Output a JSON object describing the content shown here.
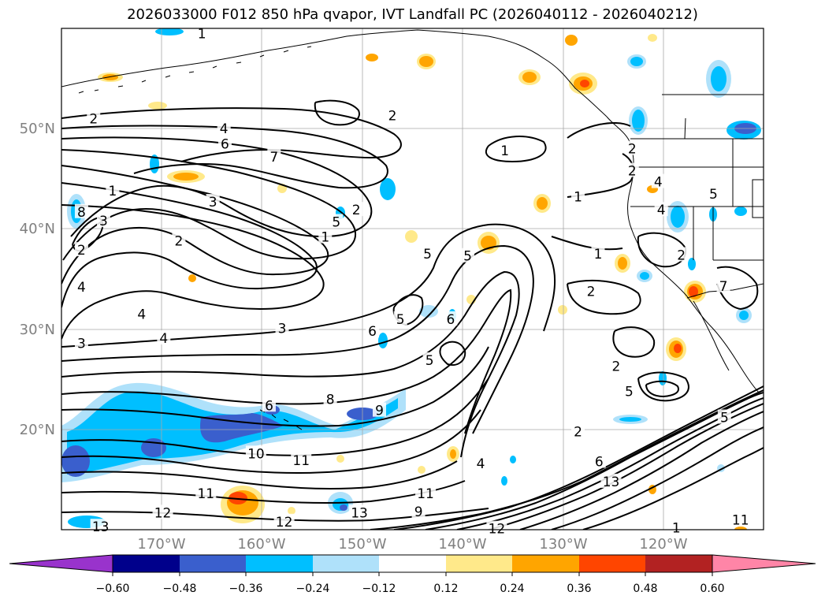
{
  "title": "2026033000 F012 850 hPa qvapor, IVT Landfall PC (2026040112 - 2026040212)",
  "map": {
    "projection": "PlateCarree",
    "lon_range": [
      -180,
      -110
    ],
    "lat_range": [
      10,
      60
    ],
    "lat_ticks": [
      "50°N",
      "40°N",
      "30°N",
      "20°N"
    ],
    "lon_ticks": [
      "170°W",
      "160°W",
      "150°W",
      "140°W",
      "130°W",
      "120°W"
    ],
    "grid": true,
    "tick_label_color": "#808080"
  },
  "contour_labels": [
    {
      "text": "1",
      "lon": -166,
      "lat": 59.5
    },
    {
      "text": "2",
      "lon": -176.8,
      "lat": 51
    },
    {
      "text": "4",
      "lon": -163.8,
      "lat": 50
    },
    {
      "text": "6",
      "lon": -163.7,
      "lat": 48.5
    },
    {
      "text": "2",
      "lon": -147,
      "lat": 51.3
    },
    {
      "text": "7",
      "lon": -158.8,
      "lat": 47.2
    },
    {
      "text": "1",
      "lon": -135.8,
      "lat": 47.8
    },
    {
      "text": "2",
      "lon": -123.1,
      "lat": 48
    },
    {
      "text": "2",
      "lon": -123.1,
      "lat": 45.8
    },
    {
      "text": "1",
      "lon": -128.5,
      "lat": 43.2
    },
    {
      "text": "4",
      "lon": -120.5,
      "lat": 44.7
    },
    {
      "text": "5",
      "lon": -115,
      "lat": 43.5
    },
    {
      "text": "1",
      "lon": -174.9,
      "lat": 43.8
    },
    {
      "text": "3",
      "lon": -164.9,
      "lat": 42.7
    },
    {
      "text": "8",
      "lon": -178,
      "lat": 41.7
    },
    {
      "text": "3",
      "lon": -175.8,
      "lat": 40.8
    },
    {
      "text": "5",
      "lon": -152.6,
      "lat": 40.7
    },
    {
      "text": "2",
      "lon": -150.6,
      "lat": 41.9
    },
    {
      "text": "1",
      "lon": -153.7,
      "lat": 39.2
    },
    {
      "text": "2",
      "lon": -168.3,
      "lat": 38.8
    },
    {
      "text": "2",
      "lon": -178,
      "lat": 37.9
    },
    {
      "text": "4",
      "lon": -120.2,
      "lat": 41.9
    },
    {
      "text": "5",
      "lon": -143.5,
      "lat": 37.5
    },
    {
      "text": "5",
      "lon": -139.5,
      "lat": 37.3
    },
    {
      "text": "1",
      "lon": -126.5,
      "lat": 37.5
    },
    {
      "text": "2",
      "lon": -118.2,
      "lat": 37.4
    },
    {
      "text": "4",
      "lon": -178,
      "lat": 34.2
    },
    {
      "text": "4",
      "lon": -172,
      "lat": 31.5
    },
    {
      "text": "2",
      "lon": -127.2,
      "lat": 33.8
    },
    {
      "text": "7",
      "lon": -114,
      "lat": 34.3
    },
    {
      "text": "6",
      "lon": -149,
      "lat": 29.8
    },
    {
      "text": "5",
      "lon": -146.2,
      "lat": 31
    },
    {
      "text": "6",
      "lon": -141.2,
      "lat": 31
    },
    {
      "text": "3",
      "lon": -158,
      "lat": 30.1
    },
    {
      "text": "4",
      "lon": -169.8,
      "lat": 29.1
    },
    {
      "text": "3",
      "lon": -178,
      "lat": 28.6
    },
    {
      "text": "5",
      "lon": -143.3,
      "lat": 26.9
    },
    {
      "text": "2",
      "lon": -124.7,
      "lat": 26.3
    },
    {
      "text": "5",
      "lon": -123.4,
      "lat": 23.8
    },
    {
      "text": "6",
      "lon": -159.3,
      "lat": 22.4
    },
    {
      "text": "8",
      "lon": -153.2,
      "lat": 23
    },
    {
      "text": "9",
      "lon": -148.3,
      "lat": 21.9
    },
    {
      "text": "5",
      "lon": -113.9,
      "lat": 21.2
    },
    {
      "text": "2",
      "lon": -128.5,
      "lat": 19.8
    },
    {
      "text": "10",
      "lon": -160.6,
      "lat": 17.6
    },
    {
      "text": "11",
      "lon": -156.1,
      "lat": 16.9
    },
    {
      "text": "4",
      "lon": -138.2,
      "lat": 16.6
    },
    {
      "text": "6",
      "lon": -126.4,
      "lat": 16.8
    },
    {
      "text": "13",
      "lon": -125.2,
      "lat": 14.8
    },
    {
      "text": "11",
      "lon": -165.6,
      "lat": 13.6
    },
    {
      "text": "11",
      "lon": -143.7,
      "lat": 13.6
    },
    {
      "text": "12",
      "lon": -169.9,
      "lat": 11.7
    },
    {
      "text": "13",
      "lon": -150.3,
      "lat": 11.7
    },
    {
      "text": "9",
      "lon": -144.4,
      "lat": 11.8
    },
    {
      "text": "12",
      "lon": -157.8,
      "lat": 10.8
    },
    {
      "text": "13",
      "lon": -176.1,
      "lat": 10.3
    },
    {
      "text": "1",
      "lon": -118.7,
      "lat": 10.2
    },
    {
      "text": "11",
      "lon": -112.3,
      "lat": 11
    },
    {
      "text": "12",
      "lon": -136.6,
      "lat": 10.1
    }
  ],
  "colorbar": {
    "colors": [
      "#9933cc",
      "#00008b",
      "#3a5fcd",
      "#00bfff",
      "#afe1fa",
      "#ffffff",
      "#ffe98a",
      "#ffa500",
      "#ff4500",
      "#b22222",
      "#ff85a7"
    ],
    "labels": [
      "−0.60",
      "−0.48",
      "−0.36",
      "−0.24",
      "−0.12",
      "0.12",
      "0.24",
      "0.36",
      "0.48",
      "0.60"
    ]
  }
}
